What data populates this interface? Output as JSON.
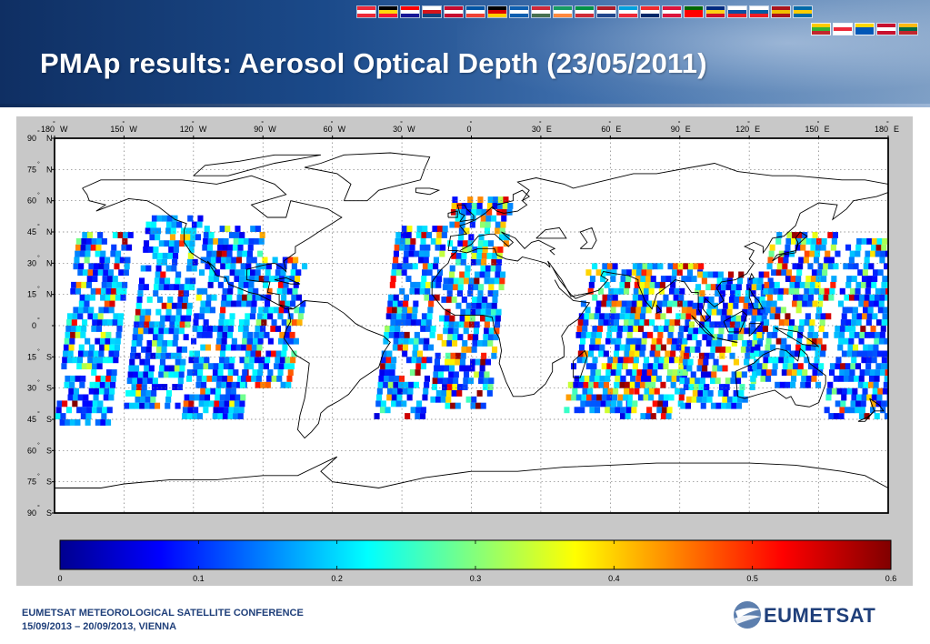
{
  "slide": {
    "title": "PMAp results: Aerosol Optical Depth (23/05/2011)"
  },
  "map": {
    "lon_ticks": [
      {
        "deg": "180",
        "dir": "W"
      },
      {
        "deg": "150",
        "dir": "W"
      },
      {
        "deg": "120",
        "dir": "W"
      },
      {
        "deg": "90",
        "dir": "W"
      },
      {
        "deg": "60",
        "dir": "W"
      },
      {
        "deg": "30",
        "dir": "W"
      },
      {
        "deg": "0",
        "dir": ""
      },
      {
        "deg": "30",
        "dir": "E"
      },
      {
        "deg": "60",
        "dir": "E"
      },
      {
        "deg": "90",
        "dir": "E"
      },
      {
        "deg": "120",
        "dir": "E"
      },
      {
        "deg": "150",
        "dir": "E"
      },
      {
        "deg": "180",
        "dir": "E"
      }
    ],
    "lat_ticks": [
      {
        "deg": "90",
        "dir": "N"
      },
      {
        "deg": "75",
        "dir": "N"
      },
      {
        "deg": "60",
        "dir": "N"
      },
      {
        "deg": "45",
        "dir": "N"
      },
      {
        "deg": "30",
        "dir": "N"
      },
      {
        "deg": "15",
        "dir": "N"
      },
      {
        "deg": "0",
        "dir": ""
      },
      {
        "deg": "15",
        "dir": "S"
      },
      {
        "deg": "30",
        "dir": "S"
      },
      {
        "deg": "45",
        "dir": "S"
      },
      {
        "deg": "60",
        "dir": "S"
      },
      {
        "deg": "75",
        "dir": "S"
      },
      {
        "deg": "90",
        "dir": "S"
      }
    ],
    "colorbar_labels": [
      "0",
      "0.1",
      "0.2",
      "0.3",
      "0.4",
      "0.5",
      "0.6"
    ],
    "colorbar_range": [
      0,
      0.6
    ],
    "colormap": [
      "#00008f",
      "#0000ff",
      "#00ffff",
      "#ffff00",
      "#ff0000",
      "#800000"
    ],
    "swaths": [
      {
        "lon1": -180,
        "lon2": -157,
        "lat1": -48,
        "lat2": 45,
        "tilt": 10,
        "hot": 0.15
      },
      {
        "lon1": -150,
        "lon2": -128,
        "lat1": -40,
        "lat2": 52,
        "tilt": 10,
        "hot": 0.1
      },
      {
        "lon1": -125,
        "lon2": -100,
        "lat1": -45,
        "lat2": 48,
        "tilt": 10,
        "hot": 0.1
      },
      {
        "lon1": -100,
        "lon2": -78,
        "lat1": -30,
        "lat2": 32,
        "tilt": 10,
        "hot": 0.25
      },
      {
        "lon1": -42,
        "lon2": -22,
        "lat1": -45,
        "lat2": 48,
        "tilt": 10,
        "hot": 0.2
      },
      {
        "lon1": -18,
        "lon2": 8,
        "lat1": -40,
        "lat2": 62,
        "tilt": 10,
        "hot": 0.35
      },
      {
        "lon1": 40,
        "lon2": 68,
        "lat1": -42,
        "lat2": 28,
        "tilt": 10,
        "hot": 0.3
      },
      {
        "lon1": 62,
        "lon2": 90,
        "lat1": -45,
        "lat2": 30,
        "tilt": 10,
        "hot": 0.45
      },
      {
        "lon1": 88,
        "lon2": 120,
        "lat1": -40,
        "lat2": 25,
        "tilt": 10,
        "hot": 0.25
      },
      {
        "lon1": 120,
        "lon2": 150,
        "lat1": -30,
        "lat2": 45,
        "tilt": 10,
        "hot": 0.35
      },
      {
        "lon1": 152,
        "lon2": 180,
        "lat1": -45,
        "lat2": 40,
        "tilt": 10,
        "hot": 0.15
      }
    ]
  },
  "footer": {
    "line1": "EUMETSAT METEOROLOGICAL SATELLITE CONFERENCE",
    "line2": "15/09/2013 – 20/09/2013, VIENNA",
    "logo": "EUMETSAT"
  }
}
